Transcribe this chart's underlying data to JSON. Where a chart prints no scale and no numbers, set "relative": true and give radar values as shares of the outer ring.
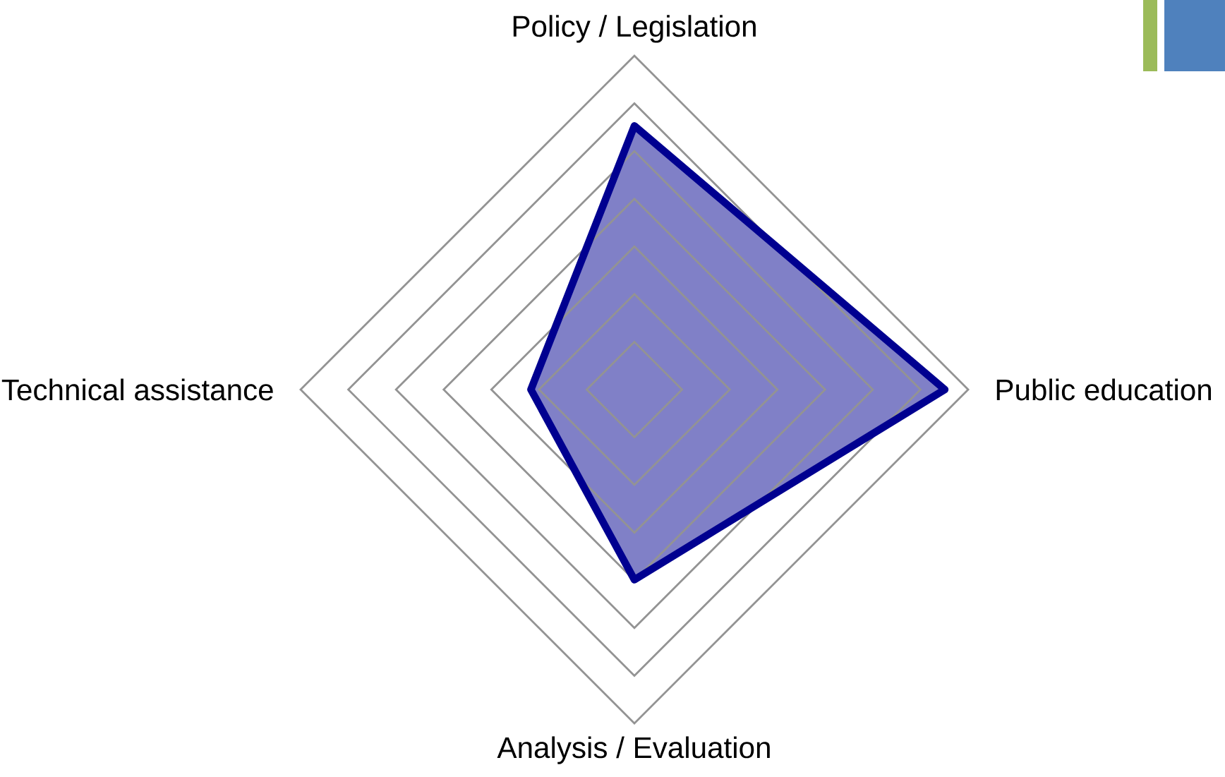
{
  "chart_data": {
    "type": "radar",
    "relative": true,
    "grid": true,
    "categories": [
      "Policy / Legislation",
      "Public education",
      "Analysis / Evaluation",
      "Technical assistance"
    ],
    "series": [
      {
        "color": "#000090",
        "values": [
          0.79,
          0.93,
          0.57,
          0.31
        ]
      }
    ]
  }
}
